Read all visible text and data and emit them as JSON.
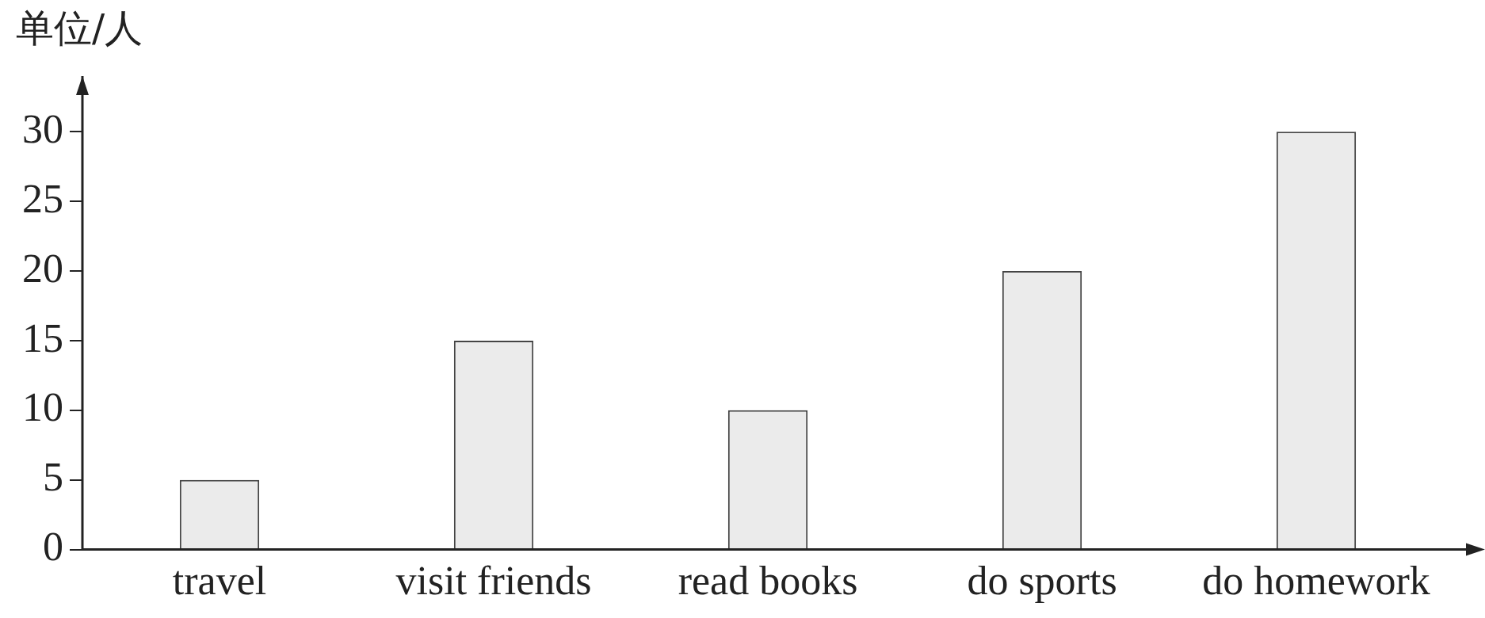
{
  "chart_data": {
    "type": "bar",
    "ylabel": "单位/人",
    "categories": [
      "travel",
      "visit friends",
      "read books",
      "do sports",
      "do homework"
    ],
    "values": [
      5,
      15,
      10,
      20,
      30
    ],
    "color": "#ebebeb",
    "ylim": [
      0,
      34
    ],
    "yticks": [
      0,
      5,
      10,
      15,
      20,
      25,
      30
    ],
    "grid": false,
    "legend": false
  }
}
